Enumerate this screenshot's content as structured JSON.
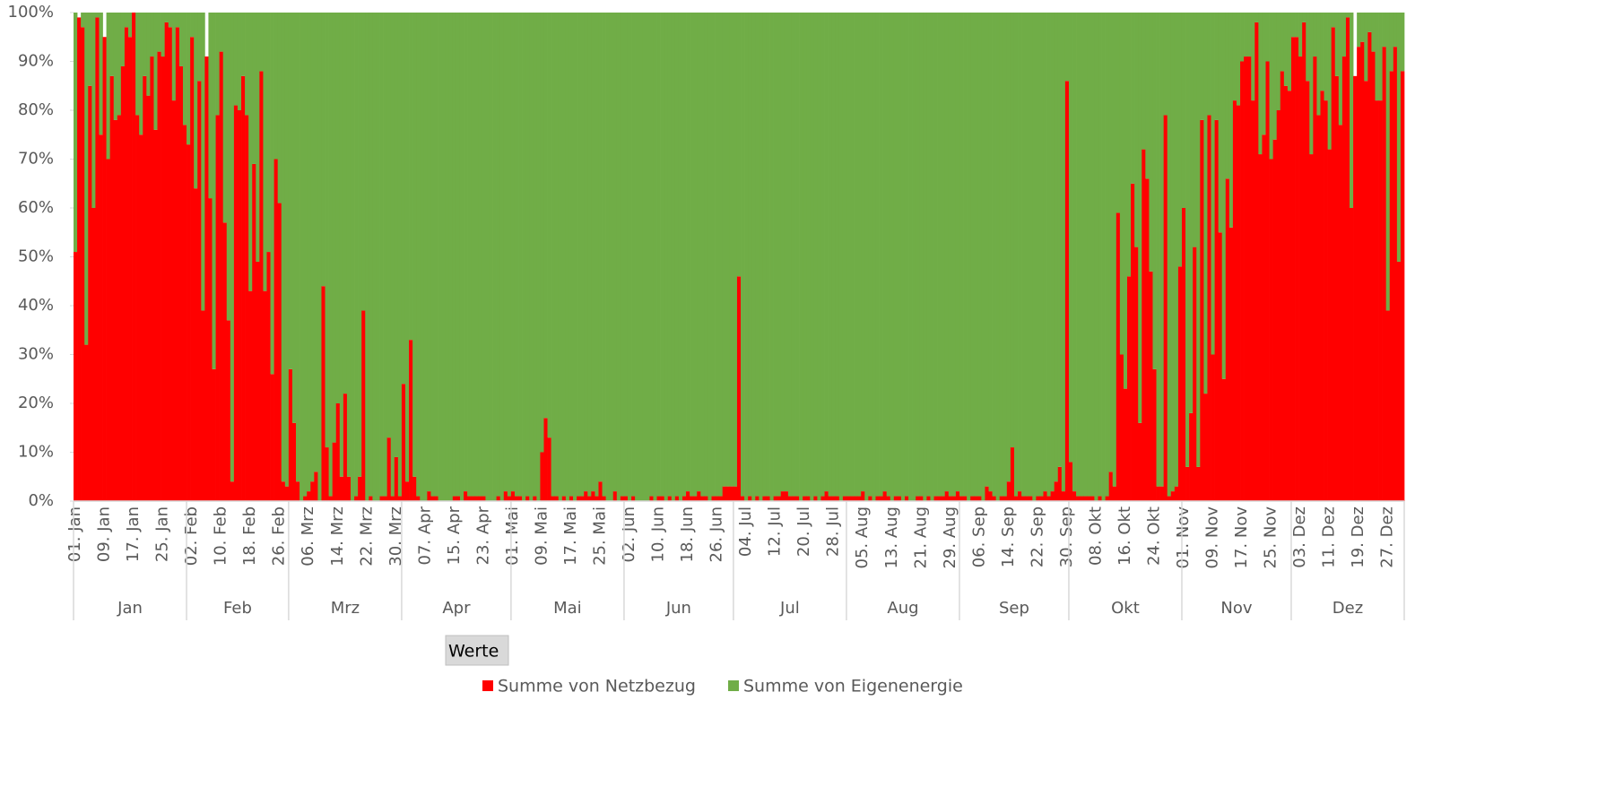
{
  "chart_data": {
    "type": "bar",
    "stacked": true,
    "categories": [
      "01. Jan",
      null,
      null,
      null,
      null,
      null,
      null,
      null,
      "09. Jan",
      null,
      null,
      null,
      null,
      null,
      null,
      null,
      "17. Jan",
      null,
      null,
      null,
      null,
      null,
      null,
      null,
      "25. Jan",
      null,
      null,
      null,
      null,
      null,
      null,
      null,
      "02. Feb",
      null,
      null,
      null,
      null,
      null,
      null,
      null,
      "10. Feb",
      null,
      null,
      null,
      null,
      null,
      null,
      null,
      "18. Feb",
      null,
      null,
      null,
      null,
      null,
      null,
      null,
      "26. Feb",
      null,
      null,
      null,
      null,
      null,
      null,
      null,
      "06. Mrz",
      null,
      null,
      null,
      null,
      null,
      null,
      null,
      "14. Mrz",
      null,
      null,
      null,
      null,
      null,
      null,
      null,
      "22. Mrz",
      null,
      null,
      null,
      null,
      null,
      null,
      null,
      "30. Mrz",
      null,
      null,
      null,
      null,
      null,
      null,
      null,
      "07. Apr",
      null,
      null,
      null,
      null,
      null,
      null,
      null,
      "15. Apr",
      null,
      null,
      null,
      null,
      null,
      null,
      null,
      "23. Apr",
      null,
      null,
      null,
      null,
      null,
      null,
      null,
      "01. Mai",
      null,
      null,
      null,
      null,
      null,
      null,
      null,
      "09. Mai",
      null,
      null,
      null,
      null,
      null,
      null,
      null,
      "17. Mai",
      null,
      null,
      null,
      null,
      null,
      null,
      null,
      "25. Mai",
      null,
      null,
      null,
      null,
      null,
      null,
      null,
      "02. Jun",
      null,
      null,
      null,
      null,
      null,
      null,
      null,
      "10. Jun",
      null,
      null,
      null,
      null,
      null,
      null,
      null,
      "18. Jun",
      null,
      null,
      null,
      null,
      null,
      null,
      null,
      "26. Jun",
      null,
      null,
      null,
      null,
      null,
      null,
      null,
      "04. Jul",
      null,
      null,
      null,
      null,
      null,
      null,
      null,
      "12. Jul",
      null,
      null,
      null,
      null,
      null,
      null,
      null,
      "20. Jul",
      null,
      null,
      null,
      null,
      null,
      null,
      null,
      "28. Jul",
      null,
      null,
      null,
      null,
      null,
      null,
      null,
      "05. Aug",
      null,
      null,
      null,
      null,
      null,
      null,
      null,
      "13. Aug",
      null,
      null,
      null,
      null,
      null,
      null,
      null,
      "21. Aug",
      null,
      null,
      null,
      null,
      null,
      null,
      null,
      "29. Aug",
      null,
      null,
      null,
      null,
      null,
      null,
      null,
      "06. Sep",
      null,
      null,
      null,
      null,
      null,
      null,
      null,
      "14. Sep",
      null,
      null,
      null,
      null,
      null,
      null,
      null,
      "22. Sep",
      null,
      null,
      null,
      null,
      null,
      null,
      null,
      "30. Sep",
      null,
      null,
      null,
      null,
      null,
      null,
      null,
      "08. Okt",
      null,
      null,
      null,
      null,
      null,
      null,
      null,
      "16. Okt",
      null,
      null,
      null,
      null,
      null,
      null,
      null,
      "24. Okt",
      null,
      null,
      null,
      null,
      null,
      null,
      null,
      "01. Nov",
      null,
      null,
      null,
      null,
      null,
      null,
      null,
      "09. Nov",
      null,
      null,
      null,
      null,
      null,
      null,
      null,
      "17. Nov",
      null,
      null,
      null,
      null,
      null,
      null,
      null,
      "25. Nov",
      null,
      null,
      null,
      null,
      null,
      null,
      null,
      "03. Dez",
      null,
      null,
      null,
      null,
      null,
      null,
      null,
      "11. Dez",
      null,
      null,
      null,
      null,
      null,
      null,
      null,
      "19. Dez",
      null,
      null,
      null,
      null,
      null,
      null,
      null,
      "27. Dez",
      null,
      null,
      null,
      null
    ],
    "groups": [
      "Jan",
      "Feb",
      "Mrz",
      "Apr",
      "Mai",
      "Jun",
      "Jul",
      "Aug",
      "Sep",
      "Okt",
      "Nov",
      "Dez"
    ],
    "series": [
      {
        "name": "Summe von Netzbezug",
        "color": "#ff0000",
        "values": [
          51,
          99,
          97,
          32,
          85,
          60,
          99,
          75,
          95,
          70,
          87,
          78,
          79,
          89,
          97,
          95,
          100,
          79,
          75,
          87,
          83,
          91,
          76,
          92,
          91,
          98,
          97,
          82,
          97,
          89,
          77,
          73,
          95,
          64,
          86,
          39,
          91,
          62,
          27,
          79,
          92,
          57,
          37,
          4,
          81,
          80,
          87,
          79,
          43,
          69,
          49,
          88,
          43,
          51,
          26,
          70,
          61,
          4,
          3,
          27,
          16,
          4,
          0,
          1,
          2,
          4,
          6,
          0,
          44,
          11,
          1,
          12,
          20,
          5,
          22,
          5,
          0,
          1,
          5,
          39,
          0,
          1,
          0,
          0,
          1,
          1,
          13,
          1,
          9,
          1,
          24,
          4,
          33,
          5,
          1,
          0,
          0,
          2,
          1,
          1,
          0,
          0,
          0,
          0,
          1,
          1,
          0,
          2,
          1,
          1,
          1,
          1,
          1,
          0,
          0,
          0,
          1,
          0,
          2,
          1,
          2,
          1,
          1,
          0,
          1,
          0,
          1,
          0,
          10,
          17,
          13,
          1,
          1,
          0,
          1,
          0,
          1,
          0,
          1,
          1,
          2,
          1,
          2,
          1,
          4,
          1,
          0,
          0,
          2,
          0,
          1,
          1,
          0,
          1,
          0,
          0,
          0,
          0,
          1,
          0,
          1,
          1,
          0,
          1,
          0,
          1,
          0,
          1,
          2,
          1,
          1,
          2,
          1,
          1,
          0,
          1,
          1,
          1,
          3,
          3,
          3,
          3,
          46,
          1,
          0,
          1,
          0,
          1,
          0,
          1,
          1,
          0,
          1,
          1,
          2,
          2,
          1,
          1,
          1,
          0,
          1,
          1,
          0,
          1,
          0,
          1,
          2,
          1,
          1,
          1,
          0,
          1,
          1,
          1,
          1,
          1,
          2,
          0,
          1,
          0,
          1,
          1,
          2,
          1,
          0,
          1,
          1,
          0,
          1,
          0,
          0,
          1,
          1,
          0,
          1,
          0,
          1,
          1,
          1,
          2,
          1,
          1,
          2,
          1,
          1,
          0,
          1,
          1,
          1,
          0,
          3,
          2,
          1,
          0,
          1,
          1,
          4,
          11,
          1,
          2,
          1,
          1,
          1,
          0,
          1,
          1,
          2,
          1,
          2,
          4,
          7,
          2,
          86,
          8,
          2,
          1,
          1,
          1,
          1,
          1,
          0,
          1,
          0,
          1,
          6,
          3,
          59,
          30,
          23,
          46,
          65,
          52,
          16,
          72,
          66,
          47,
          27,
          3,
          3,
          79,
          1,
          2,
          3,
          48,
          60,
          7,
          18,
          52,
          7,
          78,
          22,
          79,
          30,
          78,
          55,
          25,
          66,
          56,
          82,
          81,
          90,
          91,
          91,
          82,
          98,
          71,
          75,
          90,
          70,
          74,
          80,
          88,
          85,
          84,
          95,
          95,
          91,
          98,
          86,
          71,
          91,
          79,
          84,
          82,
          72,
          97,
          87,
          77,
          91,
          99,
          60,
          87,
          93,
          94,
          86,
          96,
          92,
          82,
          82,
          93,
          39,
          88,
          93,
          49,
          88
        ]
      },
      {
        "name": "Summe von Eigenenergie",
        "color": "#70ad47",
        "values": [
          49,
          0,
          3,
          68,
          15,
          40,
          1,
          25,
          0,
          30,
          13,
          22,
          21,
          11,
          3,
          5,
          0,
          21,
          25,
          13,
          17,
          9,
          24,
          8,
          9,
          2,
          3,
          18,
          3,
          11,
          23,
          27,
          5,
          36,
          14,
          61,
          0,
          38,
          73,
          21,
          8,
          43,
          63,
          96,
          19,
          20,
          13,
          21,
          57,
          31,
          51,
          12,
          57,
          49,
          74,
          30,
          39,
          96,
          97,
          73,
          84,
          96,
          100,
          99,
          98,
          96,
          94,
          100,
          56,
          89,
          99,
          88,
          80,
          95,
          78,
          95,
          100,
          99,
          95,
          61,
          100,
          99,
          100,
          100,
          99,
          99,
          87,
          99,
          91,
          99,
          76,
          96,
          67,
          95,
          99,
          100,
          100,
          98,
          99,
          99,
          100,
          100,
          100,
          100,
          99,
          99,
          100,
          98,
          99,
          99,
          99,
          99,
          99,
          100,
          100,
          100,
          99,
          100,
          98,
          99,
          98,
          99,
          99,
          100,
          99,
          100,
          99,
          100,
          90,
          83,
          87,
          99,
          99,
          100,
          99,
          100,
          99,
          100,
          99,
          99,
          98,
          99,
          98,
          99,
          96,
          99,
          100,
          100,
          98,
          100,
          99,
          99,
          100,
          99,
          100,
          100,
          100,
          100,
          99,
          100,
          99,
          99,
          100,
          99,
          100,
          99,
          100,
          99,
          98,
          99,
          99,
          98,
          99,
          99,
          100,
          99,
          99,
          99,
          97,
          97,
          97,
          97,
          54,
          99,
          100,
          99,
          100,
          99,
          100,
          99,
          99,
          100,
          99,
          99,
          98,
          98,
          99,
          99,
          99,
          100,
          99,
          99,
          100,
          99,
          100,
          99,
          98,
          99,
          99,
          99,
          100,
          99,
          99,
          99,
          99,
          99,
          98,
          100,
          99,
          100,
          99,
          99,
          98,
          99,
          100,
          99,
          99,
          100,
          99,
          100,
          100,
          99,
          99,
          100,
          99,
          100,
          99,
          99,
          99,
          98,
          99,
          99,
          98,
          99,
          99,
          100,
          99,
          99,
          99,
          100,
          97,
          98,
          99,
          100,
          99,
          99,
          96,
          89,
          99,
          98,
          99,
          99,
          99,
          100,
          99,
          99,
          98,
          99,
          98,
          96,
          93,
          98,
          14,
          92,
          98,
          99,
          99,
          99,
          99,
          99,
          100,
          99,
          100,
          99,
          94,
          97,
          41,
          70,
          77,
          54,
          35,
          48,
          84,
          28,
          34,
          53,
          73,
          97,
          97,
          21,
          99,
          98,
          97,
          52,
          40,
          93,
          82,
          48,
          93,
          22,
          78,
          21,
          70,
          22,
          45,
          75,
          34,
          44,
          18,
          19,
          10,
          9,
          9,
          18,
          2,
          29,
          25,
          10,
          30,
          26,
          20,
          12,
          15,
          16,
          5,
          5,
          9,
          2,
          14,
          29,
          9,
          21,
          16,
          18,
          28,
          3,
          13,
          23,
          9,
          1,
          40,
          0,
          7,
          6,
          14,
          4,
          8,
          18,
          18,
          7,
          61,
          12,
          7,
          51,
          12
        ]
      }
    ],
    "ylim": [
      0,
      100
    ],
    "yticks": [
      {
        "value": 0,
        "label": "0%"
      },
      {
        "value": 10,
        "label": "10%"
      },
      {
        "value": 20,
        "label": "20%"
      },
      {
        "value": 30,
        "label": "30%"
      },
      {
        "value": 40,
        "label": "40%"
      },
      {
        "value": 50,
        "label": "50%"
      },
      {
        "value": 60,
        "label": "60%"
      },
      {
        "value": 70,
        "label": "70%"
      },
      {
        "value": 80,
        "label": "80%"
      },
      {
        "value": 90,
        "label": "90%"
      },
      {
        "value": 100,
        "label": "100%"
      }
    ],
    "grid": false,
    "legend": "bottom",
    "field_button": "Werte"
  }
}
